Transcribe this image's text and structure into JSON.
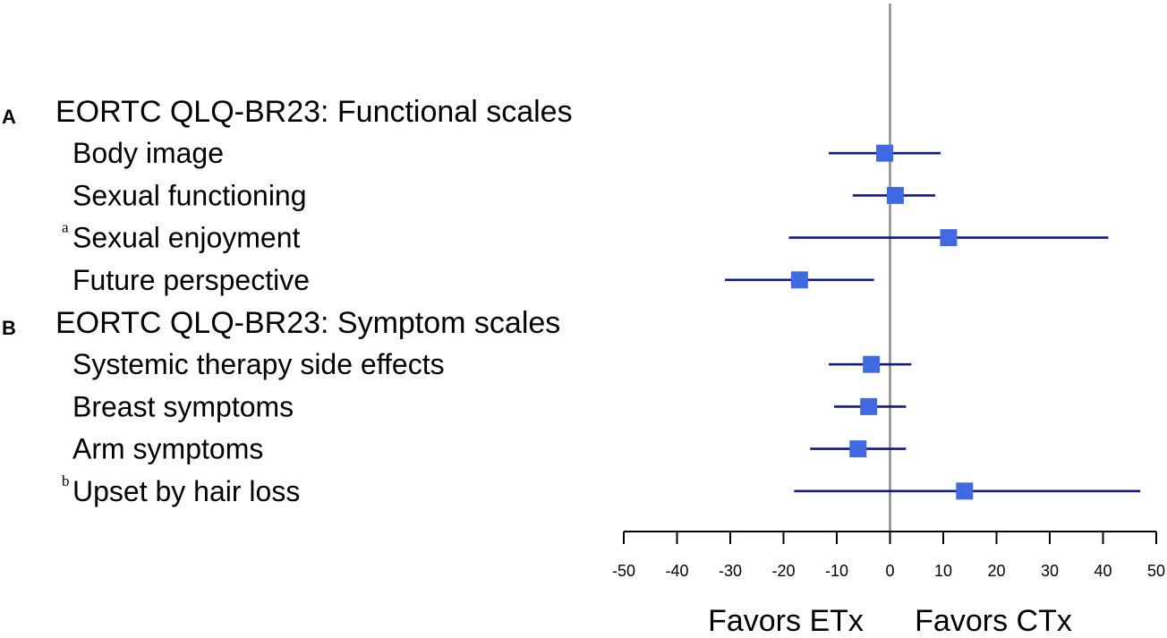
{
  "chart_data": {
    "type": "forest",
    "xlim": [
      -50,
      50
    ],
    "xticks": [
      -50,
      -40,
      -30,
      -20,
      -10,
      0,
      10,
      20,
      30,
      40,
      50
    ],
    "reference_line": 0,
    "xlabel_left": "Favors ETx",
    "xlabel_right": "Favors CTx",
    "colors": {
      "point": "#4169e1",
      "ci": "#101890",
      "reference": "#8c8c8c",
      "axis": "#000000"
    },
    "sections": [
      {
        "panel": "A",
        "title": "EORTC QLQ-BR23: Functional scales",
        "items": [
          {
            "label": "Body image",
            "note": "",
            "estimate": -1,
            "ci_low": -11.5,
            "ci_high": 9.5
          },
          {
            "label": "Sexual functioning",
            "note": "",
            "estimate": 1,
            "ci_low": -7,
            "ci_high": 8.5
          },
          {
            "label": "Sexual enjoyment",
            "note": "a",
            "estimate": 11,
            "ci_low": -19,
            "ci_high": 41
          },
          {
            "label": "Future perspective",
            "note": "",
            "estimate": -17,
            "ci_low": -31,
            "ci_high": -3
          }
        ]
      },
      {
        "panel": "B",
        "title": "EORTC QLQ-BR23: Symptom scales",
        "items": [
          {
            "label": "Systemic therapy side effects",
            "note": "",
            "estimate": -3.5,
            "ci_low": -11.5,
            "ci_high": 4
          },
          {
            "label": "Breast symptoms",
            "note": "",
            "estimate": -4,
            "ci_low": -10.5,
            "ci_high": 3
          },
          {
            "label": "Arm symptoms",
            "note": "",
            "estimate": -6,
            "ci_low": -15,
            "ci_high": 3
          },
          {
            "label": "Upset by hair loss",
            "note": "b",
            "estimate": 14,
            "ci_low": -18,
            "ci_high": 47
          }
        ]
      }
    ]
  }
}
